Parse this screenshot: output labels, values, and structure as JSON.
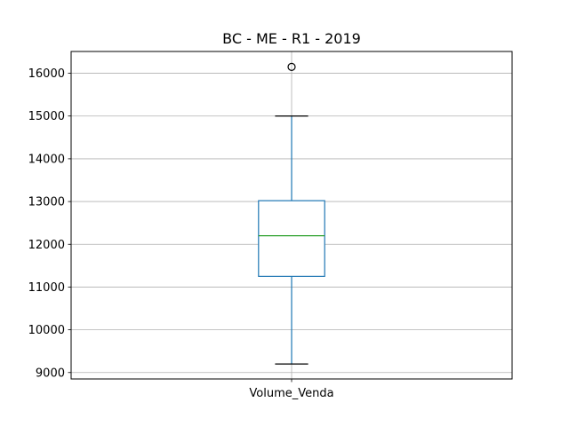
{
  "chart_data": {
    "type": "box",
    "title": "BC - ME - R1 - 2019",
    "xlabel": "",
    "ylabel": "",
    "categories": [
      "Volume_Venda"
    ],
    "boxes": [
      {
        "name": "Volume_Venda",
        "whisker_low": 9200,
        "q1": 11250,
        "median": 12200,
        "q3": 13020,
        "whisker_high": 15000,
        "outliers": [
          16150
        ]
      }
    ],
    "yticks": [
      9000,
      10000,
      11000,
      12000,
      13000,
      14000,
      15000,
      16000
    ],
    "ytick_labels": [
      "9000",
      "10000",
      "11000",
      "12000",
      "13000",
      "14000",
      "15000",
      "16000"
    ],
    "ylim": [
      8850,
      16510
    ],
    "grid": true,
    "colors": {
      "box": "#1f77b4",
      "median": "#2ca02c",
      "whisker": "#1f77b4",
      "cap": "#000000",
      "outlier": "#000000",
      "grid": "#b0b0b0",
      "frame": "#000000"
    }
  }
}
